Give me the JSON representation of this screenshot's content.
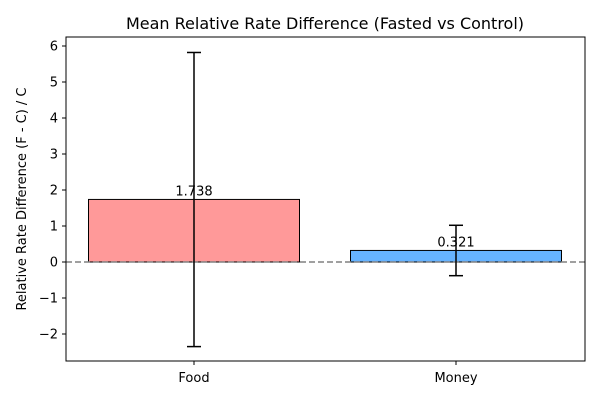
{
  "chart_data": {
    "type": "bar",
    "title": "Mean Relative Rate Difference (Fasted vs Control)",
    "xlabel": "",
    "ylabel": "Relative Rate Difference (F - C) / C",
    "categories": [
      "Food",
      "Money"
    ],
    "values": [
      1.738,
      0.321
    ],
    "value_labels": [
      "1.738",
      "0.321"
    ],
    "error_bars": [
      {
        "low": -2.35,
        "high": 5.82
      },
      {
        "low": -0.38,
        "high": 1.02
      }
    ],
    "bar_colors": [
      "#ff9999",
      "#66b3ff"
    ],
    "edge_color": "#000000",
    "ylim": [
      -2.75,
      6.25
    ],
    "yticks": [
      -2,
      -1,
      0,
      1,
      2,
      3,
      4,
      5,
      6
    ],
    "ytick_labels": [
      "−2",
      "−1",
      "0",
      "1",
      "2",
      "3",
      "4",
      "5",
      "6"
    ],
    "reference_line": {
      "y": 0,
      "style": "dashed",
      "color": "#808080"
    },
    "grid": false,
    "legend": "none"
  }
}
